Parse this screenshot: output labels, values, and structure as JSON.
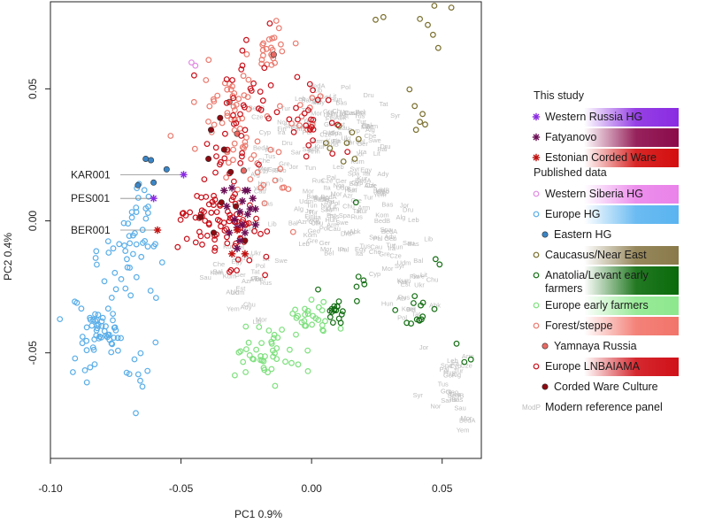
{
  "chart_data": {
    "type": "scatter",
    "title": "",
    "xlabel": "PC1 0.9%",
    "ylabel": "PC2 0.4%",
    "xlim": [
      -0.1,
      0.065
    ],
    "ylim": [
      -0.09,
      0.083
    ],
    "xticks": [
      "-0.10",
      "-0.05",
      "0.00",
      "0.05"
    ],
    "xtick_values": [
      -0.1,
      -0.05,
      0.0,
      0.05
    ],
    "yticks": [
      "0.05",
      "0.00",
      "-0.05"
    ],
    "ytick_values": [
      0.05,
      0.0,
      -0.05
    ],
    "annotations": [
      {
        "label": "KAR001",
        "x": -0.049,
        "y": 0.0175
      },
      {
        "label": "PES001",
        "x": -0.0605,
        "y": 0.0085
      },
      {
        "label": "BER001",
        "x": -0.059,
        "y": -0.0035
      }
    ],
    "legend": {
      "position": "right",
      "sections": [
        {
          "title": "This study",
          "entries": [
            {
              "label": "Western Russia HG",
              "marker": "asterisk",
              "color": "#8a2be2",
              "band": "#8a2be2"
            },
            {
              "label": "Fatyanovo",
              "marker": "asterisk",
              "color": "#6b0e55",
              "band": "#8b0a4a"
            },
            {
              "label": "Estonian Corded Ware",
              "marker": "asterisk",
              "color": "#c0100f",
              "band": "#d40e0e"
            }
          ]
        },
        {
          "title": "Published data",
          "entries": [
            {
              "label": "Western Siberia HG",
              "marker": "open",
              "color": "#e28ae2",
              "band": "#ea82ea"
            },
            {
              "label": "Europe HG",
              "marker": "open",
              "color": "#5aaee8",
              "band": "#5ab4f0"
            },
            {
              "label": "Eastern HG",
              "marker": "filled",
              "color": "#3b85c6",
              "band": "",
              "indent": true
            },
            {
              "label": "Caucasus/Near East",
              "marker": "open",
              "color": "#7a6f2e",
              "band": "#8a7a4a"
            },
            {
              "label": "Anatolia/Levant early farmers",
              "marker": "open",
              "color": "#156f15",
              "band": "#0a6a0a"
            },
            {
              "label": "Europe early farmers",
              "marker": "open",
              "color": "#7ee07e",
              "band": "#8de88d"
            },
            {
              "label": "Forest/steppe",
              "marker": "open",
              "color": "#ea7a6e",
              "band": "#f2746a"
            },
            {
              "label": "Yamnaya Russia",
              "marker": "filled",
              "color": "#ea6a64",
              "band": "",
              "indent": true
            },
            {
              "label": "Europe LNBAIAMA",
              "marker": "open",
              "color": "#c8101a",
              "band": "#d01018"
            },
            {
              "label": "Corded Ware Culture",
              "marker": "filled",
              "color": "#8e0a12",
              "band": "",
              "indent": true
            },
            {
              "label": "Modern reference panel",
              "marker": "text",
              "color": "#bdbdbd",
              "band": "",
              "glyph": "ModP"
            }
          ]
        }
      ]
    },
    "series": [
      {
        "name": "Europe HG",
        "style": "open",
        "color": "#5aaee8",
        "clusters": [
          {
            "cx": -0.081,
            "cy": -0.041,
            "sx": 0.0042,
            "sy": 0.0048,
            "n": 50
          },
          {
            "cx": -0.072,
            "cy": -0.015,
            "sx": 0.0062,
            "sy": 0.01,
            "n": 32
          },
          {
            "cx": -0.067,
            "cy": 0.004,
            "sx": 0.0042,
            "sy": 0.0062,
            "n": 18
          },
          {
            "cx": -0.068,
            "cy": -0.062,
            "sx": 0.0055,
            "sy": 0.008,
            "n": 10
          },
          {
            "cx": -0.088,
            "cy": -0.052,
            "sx": 0.004,
            "sy": 0.006,
            "n": 8
          }
        ]
      },
      {
        "name": "Eastern HG",
        "style": "filled",
        "color": "#3b85c6",
        "points": [
          [
            -0.0635,
            0.0235
          ],
          [
            -0.0615,
            0.023
          ],
          [
            -0.0665,
            0.0135
          ],
          [
            -0.0605,
            0.0145
          ],
          [
            -0.0555,
            0.0195
          ]
        ]
      },
      {
        "name": "Western Siberia HG",
        "style": "open",
        "color": "#e28ae2",
        "points": [
          [
            -0.046,
            0.06
          ],
          [
            -0.0445,
            0.0588
          ]
        ]
      },
      {
        "name": "Caucasus/Near East",
        "style": "open",
        "color": "#7a6f2e",
        "points": [
          [
            0.0245,
            0.0762
          ],
          [
            0.0275,
            0.0772
          ],
          [
            0.0415,
            0.0765
          ],
          [
            0.0445,
            0.0742
          ],
          [
            0.047,
            0.0815
          ],
          [
            0.0535,
            0.0808
          ],
          [
            0.0465,
            0.0705
          ],
          [
            0.0485,
            0.0655
          ],
          [
            0.0375,
            0.0498
          ],
          [
            0.0395,
            0.0435
          ],
          [
            0.0425,
            0.0405
          ],
          [
            0.0415,
            0.0375
          ],
          [
            0.0435,
            0.0365
          ],
          [
            0.04,
            0.0345
          ],
          [
            0.0105,
            0.036
          ],
          [
            0.0155,
            0.0335
          ],
          [
            0.018,
            0.031
          ],
          [
            0.0135,
            0.0295
          ],
          [
            0.007,
            0.0275
          ],
          [
            0.0165,
            0.0235
          ],
          [
            0.0122,
            0.0225
          ],
          [
            0.0055,
            0.0295
          ]
        ]
      },
      {
        "name": "Anatolia/Levant early farmers",
        "style": "open",
        "color": "#156f15",
        "clusters": [
          {
            "cx": 0.01,
            "cy": -0.035,
            "sx": 0.0018,
            "sy": 0.0018,
            "n": 16
          },
          {
            "cx": 0.019,
            "cy": -0.025,
            "sx": 0.002,
            "sy": 0.0025,
            "n": 5
          },
          {
            "cx": 0.042,
            "cy": -0.037,
            "sx": 0.003,
            "sy": 0.0035,
            "n": 12
          }
        ],
        "points": [
          [
            0.017,
            0.007
          ],
          [
            0.0475,
            -0.0145
          ],
          [
            0.049,
            -0.0165
          ],
          [
            0.0555,
            -0.0465
          ],
          [
            0.0585,
            -0.0535
          ],
          [
            0.061,
            -0.0525
          ],
          [
            0.0395,
            -0.0285
          ],
          [
            0.0025,
            -0.026
          ]
        ]
      },
      {
        "name": "Europe early farmers",
        "style": "open",
        "color": "#7ee07e",
        "clusters": [
          {
            "cx": -0.019,
            "cy": -0.05,
            "sx": 0.0052,
            "sy": 0.0058,
            "n": 36
          },
          {
            "cx": 0.0,
            "cy": -0.037,
            "sx": 0.0048,
            "sy": 0.0038,
            "n": 26
          },
          {
            "cx": -0.007,
            "cy": -0.054,
            "sx": 0.003,
            "sy": 0.003,
            "n": 6
          }
        ]
      },
      {
        "name": "Forest/steppe",
        "style": "open",
        "color": "#ea7a6e",
        "clusters": [
          {
            "cx": -0.0165,
            "cy": 0.0645,
            "sx": 0.0032,
            "sy": 0.0038,
            "n": 22
          },
          {
            "cx": -0.0315,
            "cy": 0.044,
            "sx": 0.0058,
            "sy": 0.0082,
            "n": 40
          },
          {
            "cx": -0.024,
            "cy": 0.027,
            "sx": 0.0045,
            "sy": 0.0045,
            "n": 16
          },
          {
            "cx": -0.0015,
            "cy": 0.042,
            "sx": 0.003,
            "sy": 0.0045,
            "n": 10
          },
          {
            "cx": -0.0155,
            "cy": 0.0115,
            "sx": 0.005,
            "sy": 0.0075,
            "n": 14
          }
        ],
        "points": [
          [
            -0.054,
            0.0322
          ],
          [
            -0.0135,
            0.0758
          ],
          [
            -0.0125,
            0.073
          ]
        ]
      },
      {
        "name": "Yamnaya Russia",
        "style": "filled",
        "color": "#ea6a64",
        "points": [
          [
            -0.026,
            0.019
          ],
          [
            -0.0315,
            0.045
          ],
          [
            -0.0145,
            0.063
          ],
          [
            -0.0285,
            0.033
          ]
        ]
      },
      {
        "name": "Europe LNBAIAMA",
        "style": "open",
        "color": "#c8101a",
        "clusters": [
          {
            "cx": -0.0385,
            "cy": 0.0015,
            "sx": 0.0068,
            "sy": 0.0048,
            "n": 44
          },
          {
            "cx": -0.029,
            "cy": -0.0055,
            "sx": 0.006,
            "sy": 0.0062,
            "n": 34
          },
          {
            "cx": -0.0345,
            "cy": 0.017,
            "sx": 0.0042,
            "sy": 0.0075,
            "n": 20
          },
          {
            "cx": -0.0255,
            "cy": 0.045,
            "sx": 0.0062,
            "sy": 0.0085,
            "n": 28
          },
          {
            "cx": -0.0015,
            "cy": 0.0405,
            "sx": 0.0045,
            "sy": 0.0055,
            "n": 12
          },
          {
            "cx": 0.0045,
            "cy": 0.03,
            "sx": 0.0055,
            "sy": 0.0055,
            "n": 10
          }
        ],
        "points": [
          [
            -0.0265,
            0.0645
          ],
          [
            -0.016,
            0.0748
          ],
          [
            -0.025,
            0.0685
          ],
          [
            -0.0055,
            0.0545
          ],
          [
            0.0005,
            0.0495
          ]
        ]
      },
      {
        "name": "Corded Ware Culture",
        "style": "filled",
        "color": "#8e0a12",
        "points": [
          [
            -0.0385,
            0.0345
          ],
          [
            -0.0395,
            0.0235
          ],
          [
            -0.031,
            0.0185
          ],
          [
            -0.0375,
            -0.0045
          ],
          [
            -0.0425,
            0.0015
          ],
          [
            -0.0335,
            0.027
          ],
          [
            -0.029,
            0.0055
          ],
          [
            -0.0255,
            -0.0075
          ],
          [
            -0.035,
            0.039
          ],
          [
            -0.0345,
            0.007
          ]
        ]
      },
      {
        "name": "Western Russia HG",
        "style": "asterisk",
        "color": "#8a2be2",
        "points": [
          [
            -0.049,
            0.0175
          ],
          [
            -0.0605,
            0.0085
          ]
        ]
      },
      {
        "name": "Fatyanovo",
        "style": "asterisk",
        "color": "#6b0e55",
        "points": [
          [
            -0.0305,
            0.0125
          ],
          [
            -0.0255,
            0.0115
          ],
          [
            -0.0225,
            0.0085
          ],
          [
            -0.0275,
            0.0035
          ],
          [
            -0.0245,
            0.0025
          ],
          [
            -0.0215,
            -0.0015
          ],
          [
            -0.0285,
            -0.0025
          ],
          [
            -0.0325,
            0.0055
          ],
          [
            -0.0265,
            0.0075
          ],
          [
            -0.0235,
            0.0045
          ],
          [
            -0.0295,
            0.0005
          ],
          [
            -0.0255,
            -0.0045
          ],
          [
            -0.0215,
            0.0045
          ],
          [
            -0.0315,
            -0.0045
          ],
          [
            -0.0275,
            -0.0075
          ],
          [
            -0.0335,
            0.0115
          ],
          [
            -0.0245,
            0.0115
          ],
          [
            -0.0285,
            -0.0105
          ],
          [
            -0.0265,
            -0.0015
          ]
        ]
      },
      {
        "name": "Estonian Corded Ware",
        "style": "asterisk",
        "color": "#c0100f",
        "points": [
          [
            -0.059,
            -0.0035
          ],
          [
            -0.0285,
            -0.0035
          ],
          [
            -0.0305,
            -0.0125
          ],
          [
            -0.0255,
            -0.0125
          ]
        ]
      }
    ],
    "modern_reference_panel": {
      "color": "#bdbdbd",
      "labels": [
        "Rus",
        "Fin",
        "Est",
        "Lit",
        "Pol",
        "Ukr",
        "Bel",
        "Swe",
        "Nor",
        "Ger",
        "Cze",
        "Hun",
        "Ita",
        "Spa",
        "Gre",
        "Tur",
        "Arm",
        "Geo",
        "Ira",
        "Jor",
        "Syr",
        "Pal",
        "Leb",
        "Sar",
        "Tus",
        "Bas",
        "Cyp",
        "Dru",
        "BedA",
        "BedB",
        "Sau",
        "Yem",
        "Mor",
        "Alg",
        "Tun",
        "Egy",
        "Lib",
        "Cau",
        "Che",
        "Ady",
        "Bal",
        "Kum",
        "Chu",
        "Tat",
        "Mor",
        "Udm",
        "Kom",
        "Abk",
        "Azr",
        "Kur"
      ],
      "clusters": [
        {
          "cx": 0.01,
          "cy": 0.038,
          "sx": 0.0095,
          "sy": 0.0065,
          "n": 60
        },
        {
          "cx": -0.012,
          "cy": 0.022,
          "sx": 0.0095,
          "sy": 0.0085,
          "n": 30
        },
        {
          "cx": 0.002,
          "cy": 0.001,
          "sx": 0.0085,
          "sy": 0.007,
          "n": 45
        },
        {
          "cx": 0.02,
          "cy": 0.014,
          "sx": 0.0085,
          "sy": 0.0095,
          "n": 45
        },
        {
          "cx": -0.026,
          "cy": -0.022,
          "sx": 0.006,
          "sy": 0.0085,
          "n": 30
        },
        {
          "cx": 0.03,
          "cy": -0.008,
          "sx": 0.0065,
          "sy": 0.0075,
          "n": 30
        },
        {
          "cx": 0.04,
          "cy": -0.028,
          "sx": 0.0045,
          "sy": 0.0075,
          "n": 18
        },
        {
          "cx": 0.052,
          "cy": -0.058,
          "sx": 0.0045,
          "sy": 0.008,
          "n": 20
        },
        {
          "cx": 0.06,
          "cy": -0.075,
          "sx": 0.003,
          "sy": 0.0045,
          "n": 10
        }
      ]
    }
  }
}
